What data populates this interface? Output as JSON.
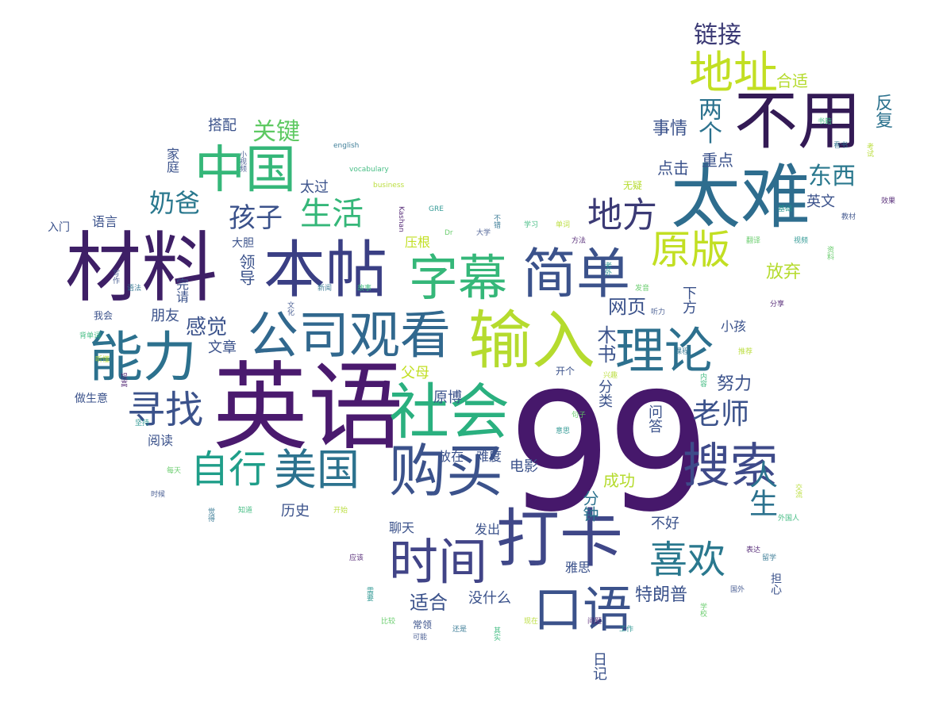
{
  "words": {
    "w99": "99",
    "yingyu": "英语",
    "cailiao": "材料",
    "benjie": "本帖",
    "taixuan": "太难",
    "buyong": "不用",
    "shuru": "输入",
    "shehui": "社会",
    "goumai": "购买",
    "daka": "打卡",
    "nengli": "能力",
    "gongsi": "公司观看",
    "jiandan": "简单",
    "zimu": "字幕",
    "zhongguo": "中国",
    "dizhi": "地址",
    "shijian": "时间",
    "kouyu": "口语",
    "sousuo": "搜索",
    "lilun": "理论",
    "xunzhao": "寻找",
    "zixing": "自行",
    "meiguo": "美国",
    "difang": "地方",
    "yuanban": "原版",
    "xihuan": "喜欢",
    "shenghuo": "生活",
    "haizi": "孩子",
    "naiba": "奶爸",
    "guanjian": "关键",
    "dongxi": "东西",
    "laoshi": "老师",
    "rensheng": "人生",
    "ganjue": "感觉",
    "lianjie": "链接",
    "liangge": "两个",
    "shiqing": "事情",
    "zhongdian": "重点",
    "heshi": "合适",
    "fanfu": "反复",
    "dianji": "点击",
    "yingwen": "英文",
    "fangqi": "放弃",
    "yeye": "网页",
    "muci": "木书",
    "xiaohai": "小孩",
    "fumu": "父母",
    "yuanbo": "原博",
    "nuli": "努力",
    "dianying": "电影",
    "chenggong": "成功",
    "fenzhong": "分钟",
    "buhao": "不好",
    "liulan": "浏览",
    "fachu": "发出",
    "liaotian": "聊天",
    "shihe": "适合",
    "meishenme": "没什么",
    "tedianpu": "特朗普",
    "lishi": "历史",
    "yuedu": "阅读",
    "zuoshengyi": "做生意",
    "pengyou": "朋友",
    "wenzhang": "文章",
    "wanqing": "完请",
    "lingdao": "领导",
    "dadan": "大胆",
    "yagen": "压根",
    "yuyan": "语言",
    "rumen": "入门",
    "jiating": "家庭",
    "dapei": "搭配",
    "taiguo": "太过",
    "fangzai": "放在",
    "nandu": "难度",
    "xiafang": "下方",
    "wohui": "我会",
    "kaige": "开个",
    "fenlei": "分类",
    "wenti": "问答",
    "yasi": "雅思",
    "changling": "常领",
    "danxin": "担心",
    "biji": "日记",
    "wuyi": "无疑",
    "tiny": [
      "小视频",
      "english",
      "vocabulary",
      "business",
      "Kashan",
      "GRE",
      "Dr",
      "大学",
      "不错",
      "学习",
      "单词",
      "方法",
      "老外",
      "发音",
      "听力",
      "课程",
      "内容",
      "推荐",
      "分享",
      "视频",
      "资料",
      "教材",
      "看书",
      "书籍",
      "考试",
      "效果",
      "基础",
      "翻译",
      "写作",
      "语法",
      "背单词",
      "听懂",
      "提高",
      "坚持",
      "每天",
      "时候",
      "觉得",
      "知道",
      "开始",
      "应该",
      "需要",
      "比较",
      "可能",
      "还是",
      "其实",
      "现在",
      "问题",
      "工作",
      "学校",
      "国外",
      "留学",
      "外国人",
      "交流",
      "表达",
      "意思",
      "句子",
      "文化",
      "新闻",
      "故事",
      "兴趣"
    ]
  }
}
